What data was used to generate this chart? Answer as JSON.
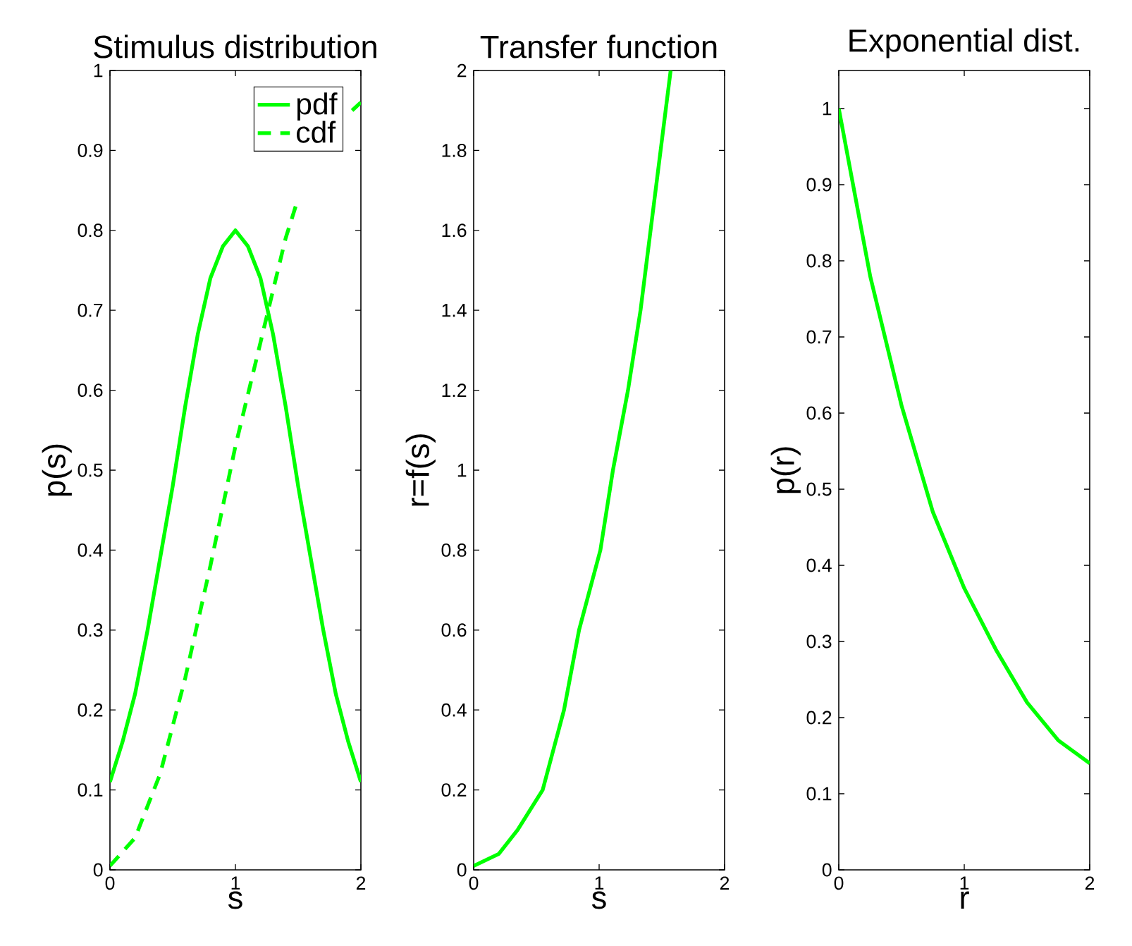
{
  "chart_data": [
    {
      "type": "line",
      "title": "Stimulus distribution",
      "xlabel": "s",
      "ylabel": "p(s)",
      "xlim": [
        0,
        2
      ],
      "ylim": [
        0,
        1
      ],
      "xticks": [
        0,
        1,
        2
      ],
      "yticks": [
        0,
        0.1,
        0.2,
        0.3,
        0.4,
        0.5,
        0.6,
        0.7,
        0.8,
        0.9,
        1
      ],
      "legend": "top right",
      "series": [
        {
          "name": "pdf",
          "color": "#00ff00",
          "line_style": "solid",
          "x": [
            0,
            0.1,
            0.2,
            0.3,
            0.4,
            0.5,
            0.6,
            0.7,
            0.8,
            0.9,
            1,
            1.1,
            1.2,
            1.3,
            1.4,
            1.5,
            1.6,
            1.7,
            1.8,
            1.9,
            2
          ],
          "values": [
            0.11,
            0.16,
            0.22,
            0.3,
            0.39,
            0.48,
            0.58,
            0.67,
            0.74,
            0.78,
            0.8,
            0.78,
            0.74,
            0.67,
            0.58,
            0.48,
            0.39,
            0.3,
            0.22,
            0.16,
            0.11
          ]
        },
        {
          "name": "cdf",
          "color": "#00ff00",
          "line_style": "dashed",
          "x": [
            0,
            0.2,
            0.4,
            0.6,
            0.8,
            1,
            1.2,
            1.4,
            1.5,
            1.7,
            1.93,
            2
          ],
          "values": [
            0.005,
            0.04,
            0.12,
            0.24,
            0.38,
            0.53,
            0.66,
            0.79,
            0.84,
            null,
            0.95,
            0.96
          ]
        }
      ]
    },
    {
      "type": "line",
      "title": "Transfer function",
      "xlabel": "s",
      "ylabel": "r=f(s)",
      "xlim": [
        0,
        2
      ],
      "ylim": [
        0,
        2
      ],
      "xticks": [
        0,
        1,
        2
      ],
      "yticks": [
        0,
        0.2,
        0.4,
        0.6,
        0.8,
        1,
        1.2,
        1.4,
        1.6,
        1.8,
        2
      ],
      "series": [
        {
          "color": "#00ff00",
          "line_style": "solid",
          "x": [
            0,
            0.2,
            0.35,
            0.55,
            0.72,
            0.84,
            1.01,
            1.11,
            1.23,
            1.33,
            1.41,
            1.49,
            1.57
          ],
          "values": [
            0.01,
            0.04,
            0.1,
            0.2,
            0.4,
            0.6,
            0.8,
            1.0,
            1.2,
            1.4,
            1.6,
            1.8,
            2.0
          ]
        }
      ]
    },
    {
      "type": "line",
      "title": "Exponential dist.",
      "xlabel": "r",
      "ylabel": "p(r)",
      "xlim": [
        0,
        2
      ],
      "ylim": [
        0,
        1.05
      ],
      "xticks": [
        0,
        1,
        2
      ],
      "yticks": [
        0,
        0.1,
        0.2,
        0.3,
        0.4,
        0.5,
        0.6,
        0.7,
        0.8,
        0.9,
        1
      ],
      "series": [
        {
          "color": "#00ff00",
          "line_style": "solid",
          "x": [
            0,
            0.25,
            0.5,
            0.75,
            1,
            1.25,
            1.5,
            1.75,
            2
          ],
          "values": [
            1,
            0.78,
            0.61,
            0.47,
            0.37,
            0.29,
            0.22,
            0.17,
            0.14
          ]
        }
      ]
    }
  ]
}
